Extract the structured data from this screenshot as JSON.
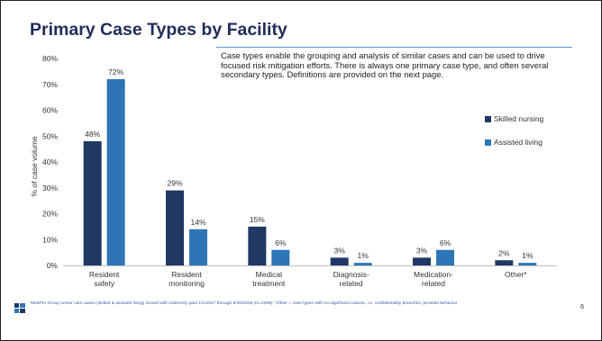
{
  "slide": {
    "title": "Primary Case Types by Facility",
    "description": "Case types enable the grouping and analysis of similar cases and can be used to drive focused risk mitigation efforts. There is always one primary case type, and often several secondary types. Definitions are provided on the next page.",
    "footer_text": "MedPro Group senior care cases (skilled & assisted living) closed with indemnity paid 1/1/2017 through 6/30/2025 (N=2286); *Other = case types with no significant volume, i.e. confidentiality breaches, provider behavior",
    "page_number": "6",
    "logo_icon": "medpro-logo-icon"
  },
  "chart_data": {
    "type": "bar",
    "categories": [
      [
        "Resident",
        "safety"
      ],
      [
        "Resident",
        "monitoring"
      ],
      [
        "Medical",
        "treatment"
      ],
      [
        "Diagnosis-",
        "related"
      ],
      [
        "Medication-",
        "related"
      ],
      [
        "Other*"
      ]
    ],
    "series": [
      {
        "name": "Skilled nursing",
        "values": [
          48,
          29,
          15,
          3,
          3,
          2
        ],
        "color": "#1f3864"
      },
      {
        "name": "Assisted living",
        "values": [
          72,
          14,
          6,
          1,
          6,
          1
        ],
        "color": "#2e75b6"
      }
    ],
    "ylabel": "% of case volume",
    "ylim": [
      0,
      80
    ],
    "yticks": [
      "0%",
      "10%",
      "20%",
      "30%",
      "40%",
      "50%",
      "60%",
      "70%",
      "80%"
    ],
    "grid": false,
    "legend": "right"
  }
}
